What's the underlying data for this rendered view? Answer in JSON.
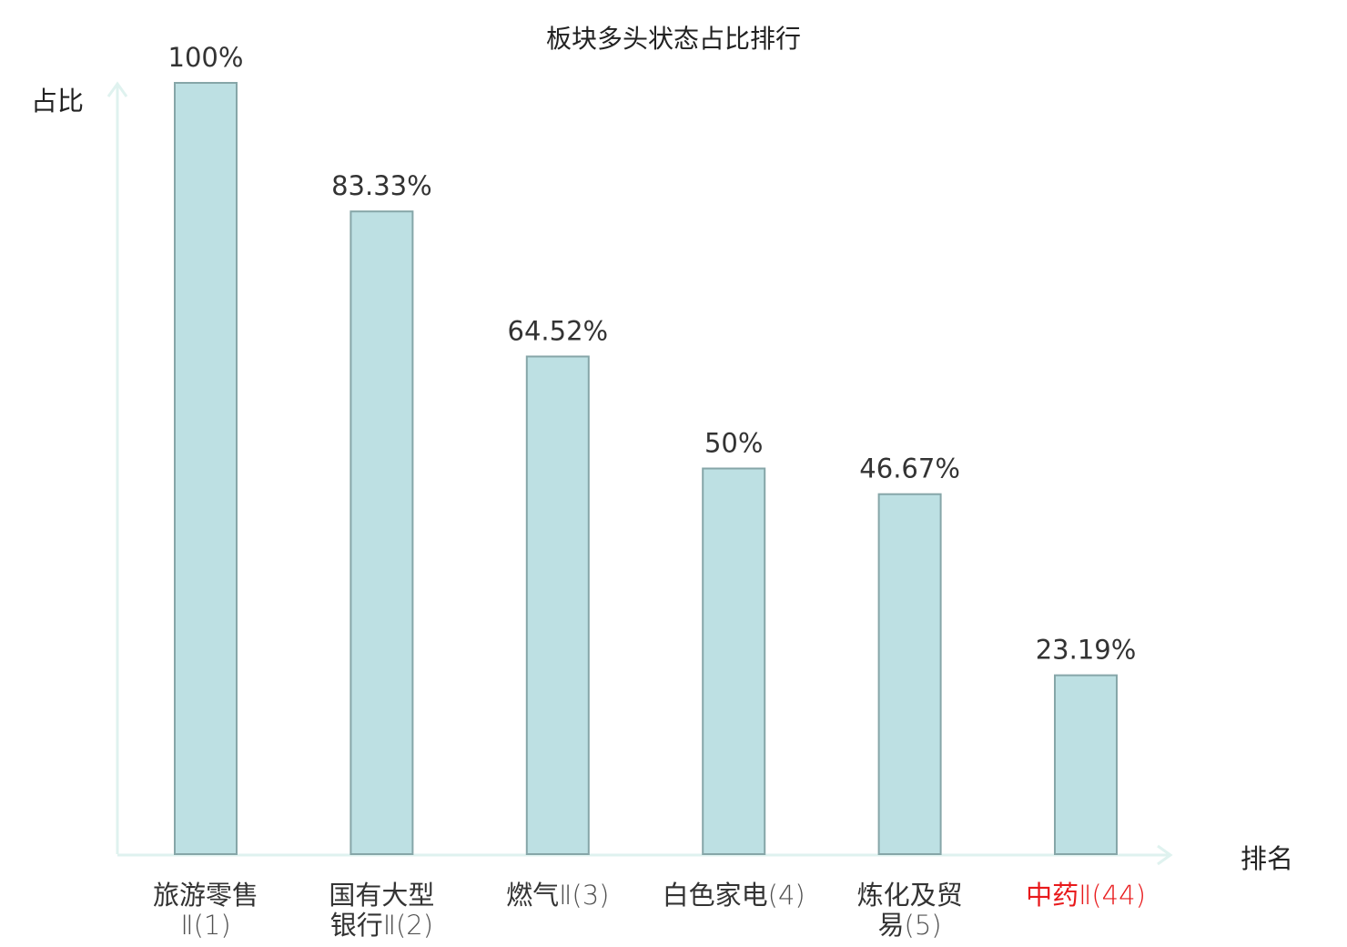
{
  "chart_data": {
    "type": "bar",
    "title": "板块多头状态占比排行",
    "ylabel": "占比",
    "xlabel": "排名",
    "ylim": [
      0,
      100
    ],
    "grid": false,
    "categories": [
      [
        "旅游零售",
        "Ⅱ(1)"
      ],
      [
        "国有大型",
        "银行Ⅱ(2)"
      ],
      [
        "燃气Ⅱ(3)"
      ],
      [
        "白色家电(4)"
      ],
      [
        "炼化及贸",
        "易(5)"
      ],
      [
        "中药Ⅱ(44)"
      ]
    ],
    "values": [
      100,
      83.33,
      64.52,
      50,
      46.67,
      23.19
    ],
    "value_labels": [
      "100%",
      "83.33%",
      "64.52%",
      "50%",
      "46.67%",
      "23.19%"
    ],
    "highlight_index": 5,
    "colors": {
      "bar_fill": "#bde0e3",
      "bar_stroke": "#86a6a8",
      "axis": "#dff2ef",
      "text": "#333333",
      "highlight_text": "#e8191b"
    }
  }
}
